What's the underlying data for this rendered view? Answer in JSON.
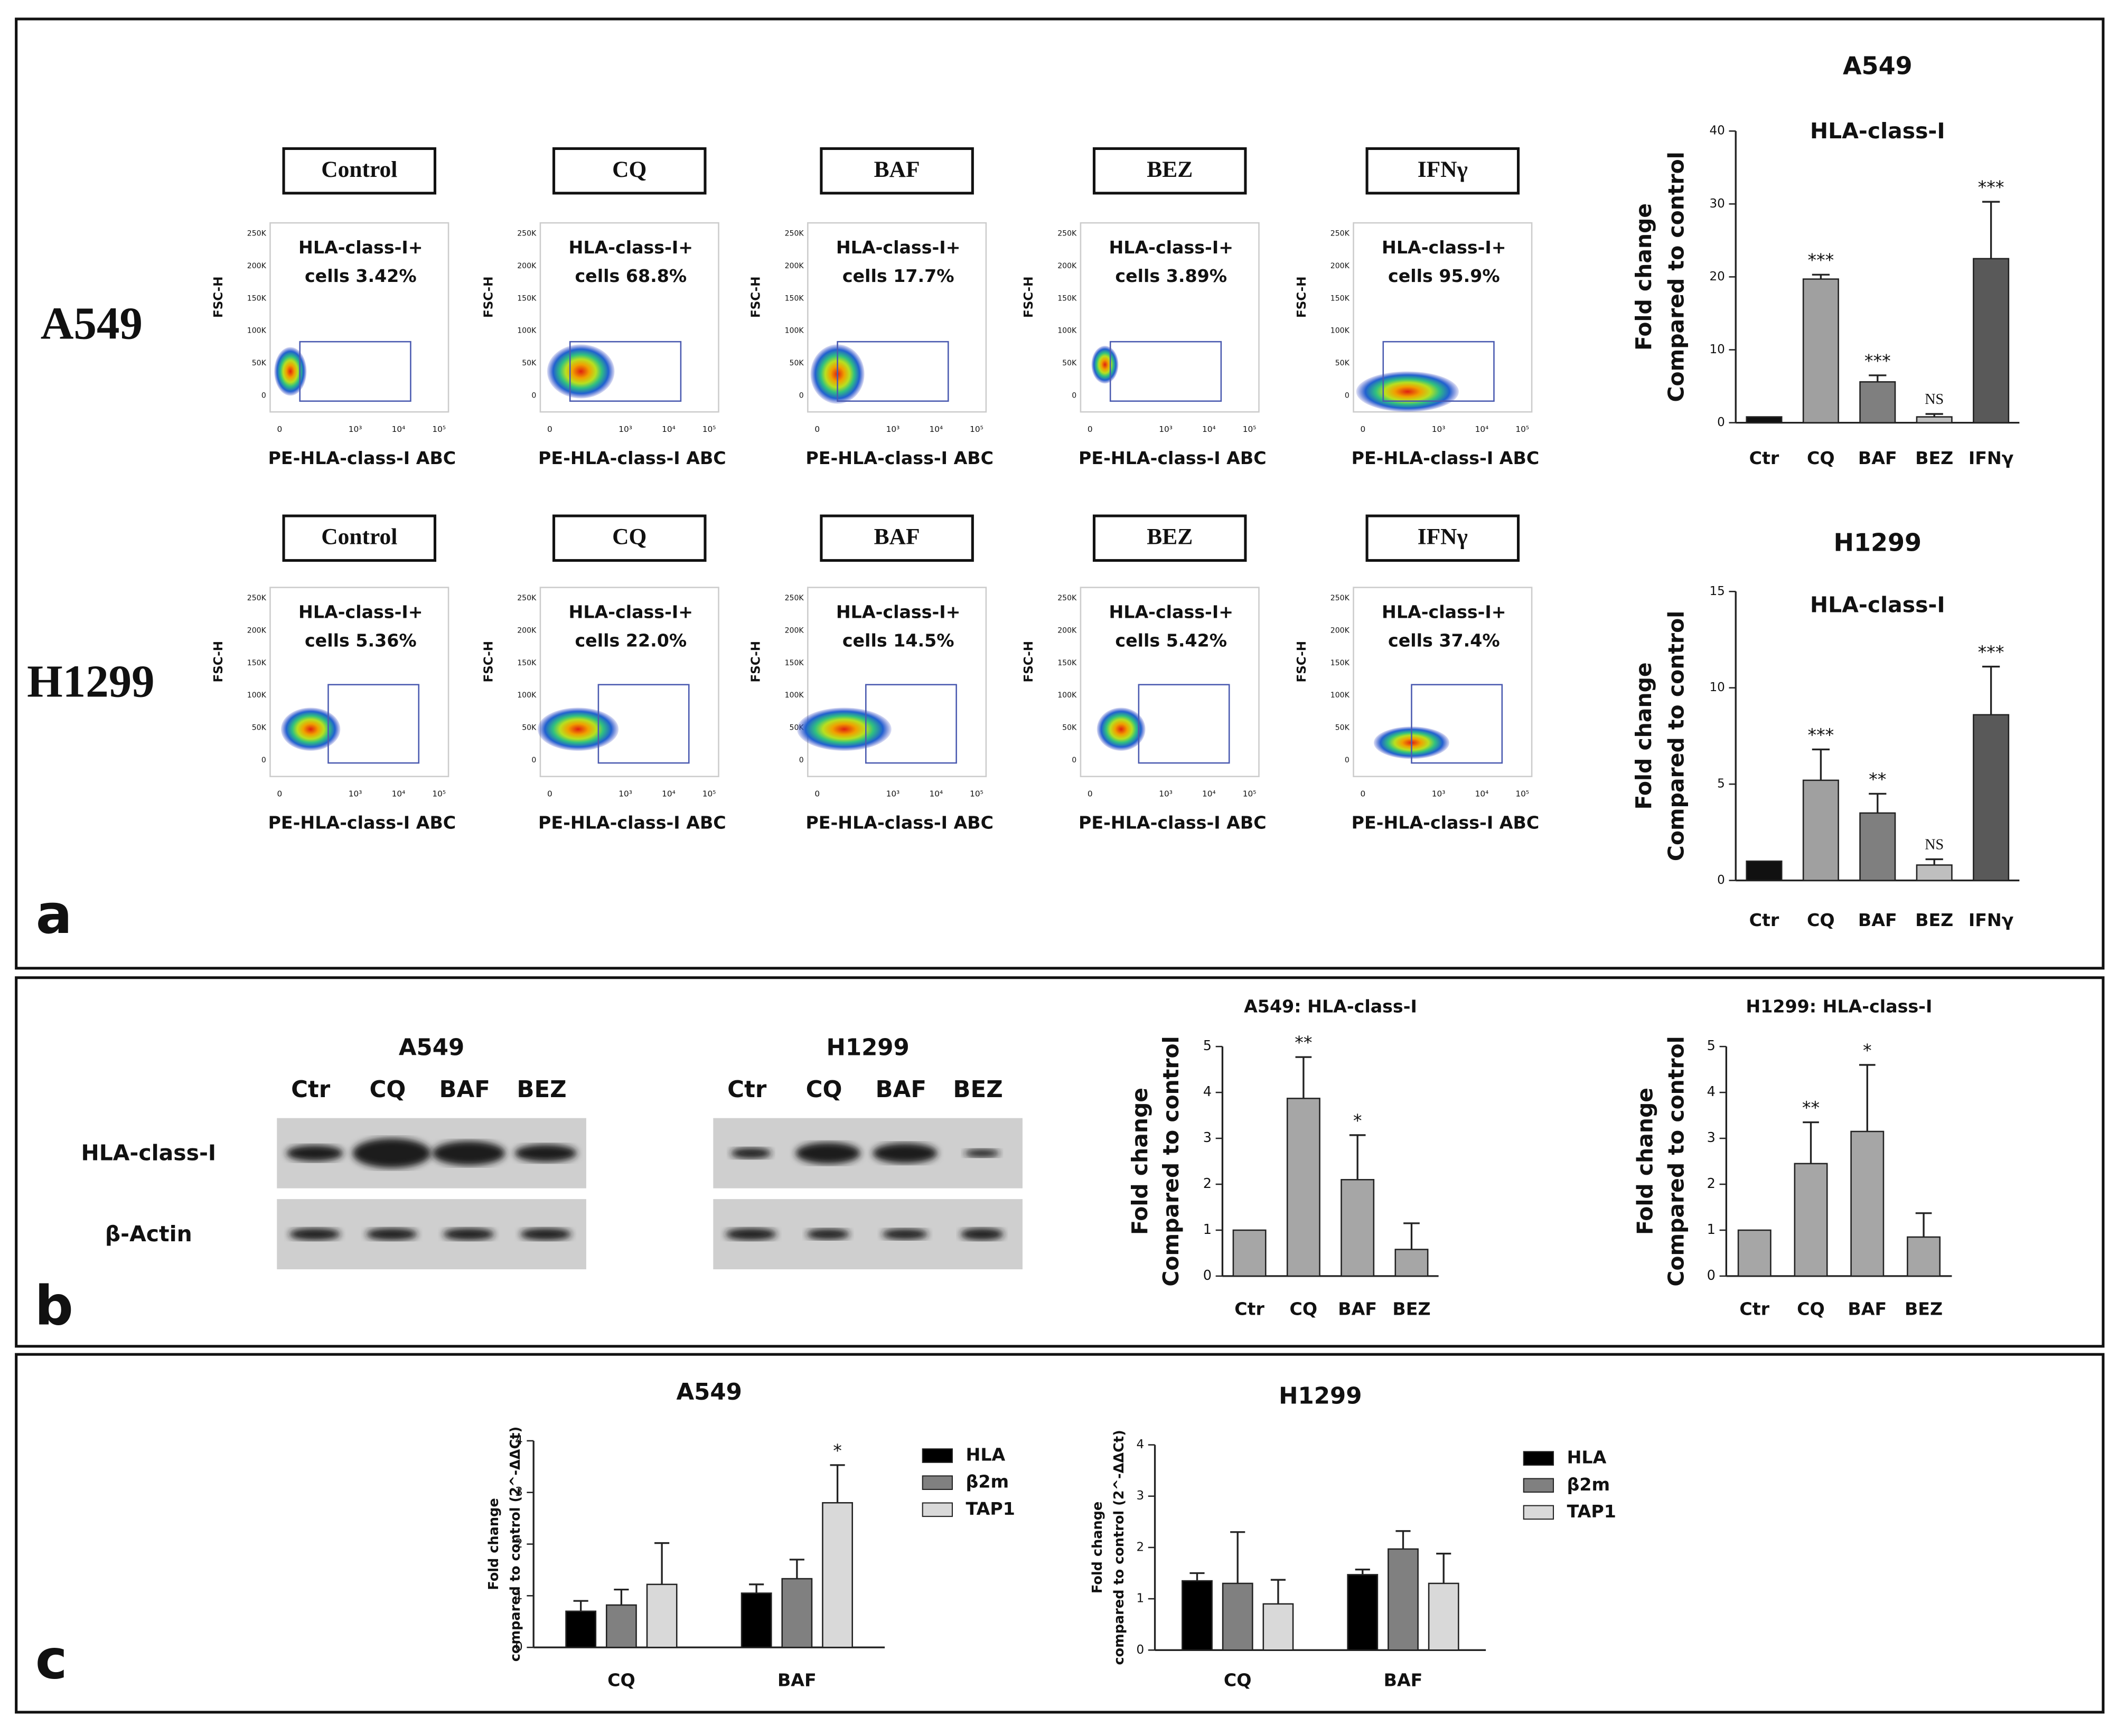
{
  "panel_labels": [
    "a",
    "b",
    "c"
  ],
  "flow": {
    "y_axis_label": "FSC-H",
    "x_axis_label": "PE-HLA-class-I ABC",
    "yticks": [
      "250K",
      "200K",
      "150K",
      "100K",
      "50K",
      "0"
    ],
    "xticks": [
      "0",
      "10³",
      "10⁴",
      "10⁵"
    ],
    "rows": [
      {
        "label": "A549",
        "plots": [
          {
            "title": "Control",
            "gate_label": "HLA-class-I+",
            "result": "cells  3.42%"
          },
          {
            "title": "CQ",
            "gate_label": "HLA-class-I+",
            "result": "cells 68.8%"
          },
          {
            "title": "BAF",
            "gate_label": "HLA-class-I+",
            "result": "cells 17.7%"
          },
          {
            "title": "BEZ",
            "gate_label": "HLA-class-I+",
            "result": "cells 3.89%"
          },
          {
            "title": "IFNγ",
            "gate_label": "HLA-class-I+",
            "result": "cells 95.9%"
          }
        ]
      },
      {
        "label": "H1299",
        "plots": [
          {
            "title": "Control",
            "gate_label": "HLA-class-I+",
            "result": "cells 5.36%"
          },
          {
            "title": "CQ",
            "gate_label": "HLA-class-I+",
            "result": "cells 22.0%"
          },
          {
            "title": "BAF",
            "gate_label": "HLA-class-I+",
            "result": "cells 14.5%"
          },
          {
            "title": "BEZ",
            "gate_label": "HLA-class-I+",
            "result": "cells 5.42%"
          },
          {
            "title": "IFNγ",
            "gate_label": "HLA-class-I+",
            "result": "cells 37.4%"
          }
        ]
      }
    ]
  },
  "blots": {
    "row_labels": [
      "HLA-class-I",
      "β-Actin"
    ],
    "panels": [
      {
        "title": "A549",
        "lanes": [
          "Ctr",
          "CQ",
          "BAF",
          "BEZ"
        ]
      },
      {
        "title": "H1299",
        "lanes": [
          "Ctr",
          "CQ",
          "BAF",
          "BEZ"
        ]
      }
    ]
  },
  "chart_data": [
    {
      "type": "bar",
      "title": "A549",
      "subtitle": "HLA-class-I",
      "ylabel": [
        "Fold change",
        "Compared to control"
      ],
      "categories": [
        "Ctr",
        "CQ",
        "BAF",
        "BEZ",
        "IFNγ"
      ],
      "values": [
        0.8,
        19.7,
        5.6,
        0.8,
        22.5
      ],
      "errors": [
        null,
        0.6,
        0.9,
        0.4,
        7.8
      ],
      "annotations": [
        null,
        "***",
        "***",
        "NS",
        "***"
      ],
      "colors": [
        "#111111",
        "#a0a0a0",
        "#7f7f7f",
        "#bfbfbf",
        "#595959"
      ],
      "ylim": [
        0,
        40
      ],
      "yticks": [
        0,
        10,
        20,
        30,
        40
      ]
    },
    {
      "type": "bar",
      "title": "H1299",
      "subtitle": "HLA-class-I",
      "ylabel": [
        "Fold change",
        "Compared to control"
      ],
      "categories": [
        "Ctr",
        "CQ",
        "BAF",
        "BEZ",
        "IFNγ"
      ],
      "values": [
        1,
        5.2,
        3.5,
        0.8,
        8.6
      ],
      "errors": [
        null,
        1.6,
        1.0,
        0.3,
        2.5
      ],
      "annotations": [
        null,
        "***",
        "**",
        "NS",
        "***"
      ],
      "colors": [
        "#111111",
        "#a0a0a0",
        "#7f7f7f",
        "#bfbfbf",
        "#595959"
      ],
      "ylim": [
        0,
        15
      ],
      "yticks": [
        0,
        5,
        10,
        15
      ]
    },
    {
      "type": "bar",
      "title": "A549: HLA-class-I",
      "ylabel": [
        "Fold change",
        "Compared to control"
      ],
      "categories": [
        "Ctr",
        "CQ",
        "BAF",
        "BEZ"
      ],
      "values": [
        1,
        3.87,
        2.1,
        0.58
      ],
      "errors": [
        null,
        0.9,
        0.97,
        0.57
      ],
      "annotations": [
        null,
        "**",
        "*",
        null
      ],
      "colors": [
        "#a6a6a6",
        "#a6a6a6",
        "#a6a6a6",
        "#a6a6a6"
      ],
      "ylim": [
        0,
        5
      ],
      "yticks": [
        0,
        1,
        2,
        3,
        4,
        5
      ]
    },
    {
      "type": "bar",
      "title": "H1299: HLA-class-I",
      "ylabel": [
        "Fold change",
        "Compared to control"
      ],
      "categories": [
        "Ctr",
        "CQ",
        "BAF",
        "BEZ"
      ],
      "values": [
        1,
        2.45,
        3.15,
        0.85
      ],
      "errors": [
        null,
        0.9,
        1.45,
        0.52
      ],
      "annotations": [
        null,
        "**",
        "*",
        null
      ],
      "colors": [
        "#a6a6a6",
        "#a6a6a6",
        "#a6a6a6",
        "#a6a6a6"
      ],
      "ylim": [
        0,
        5
      ],
      "yticks": [
        0,
        1,
        2,
        3,
        4,
        5
      ]
    },
    {
      "type": "bar",
      "title": "A549",
      "ylabel": [
        "Fold change",
        "compared to control (2^-ΔΔCt)"
      ],
      "categories": [
        "CQ",
        "BAF"
      ],
      "ylim": [
        0,
        4
      ],
      "yticks": [
        0,
        1,
        2,
        3,
        4
      ],
      "series": [
        {
          "name": "HLA",
          "color": "#000000",
          "values": [
            0.7,
            1.05
          ],
          "errors": [
            0.2,
            0.17
          ],
          "annotations": [
            null,
            null
          ]
        },
        {
          "name": "β2m",
          "color": "#808080",
          "values": [
            0.82,
            1.33
          ],
          "errors": [
            0.3,
            0.37
          ],
          "annotations": [
            null,
            null
          ]
        },
        {
          "name": "TAP1",
          "color": "#d9d9d9",
          "values": [
            1.22,
            2.8
          ],
          "errors": [
            0.8,
            0.73
          ],
          "annotations": [
            null,
            "*"
          ]
        }
      ]
    },
    {
      "type": "bar",
      "title": "H1299",
      "ylabel": [
        "Fold change",
        "compared to control (2^-ΔΔCt)"
      ],
      "categories": [
        "CQ",
        "BAF"
      ],
      "ylim": [
        0,
        4
      ],
      "yticks": [
        0,
        1,
        2,
        3,
        4
      ],
      "series": [
        {
          "name": "HLA",
          "color": "#000000",
          "values": [
            1.35,
            1.47
          ],
          "errors": [
            0.15,
            0.1
          ],
          "annotations": [
            null,
            null
          ]
        },
        {
          "name": "β2m",
          "color": "#808080",
          "values": [
            1.3,
            1.97
          ],
          "errors": [
            1.0,
            0.35
          ],
          "annotations": [
            null,
            null
          ]
        },
        {
          "name": "TAP1",
          "color": "#d9d9d9",
          "values": [
            0.9,
            1.3
          ],
          "errors": [
            0.47,
            0.58
          ],
          "annotations": [
            null,
            null
          ]
        }
      ]
    }
  ]
}
